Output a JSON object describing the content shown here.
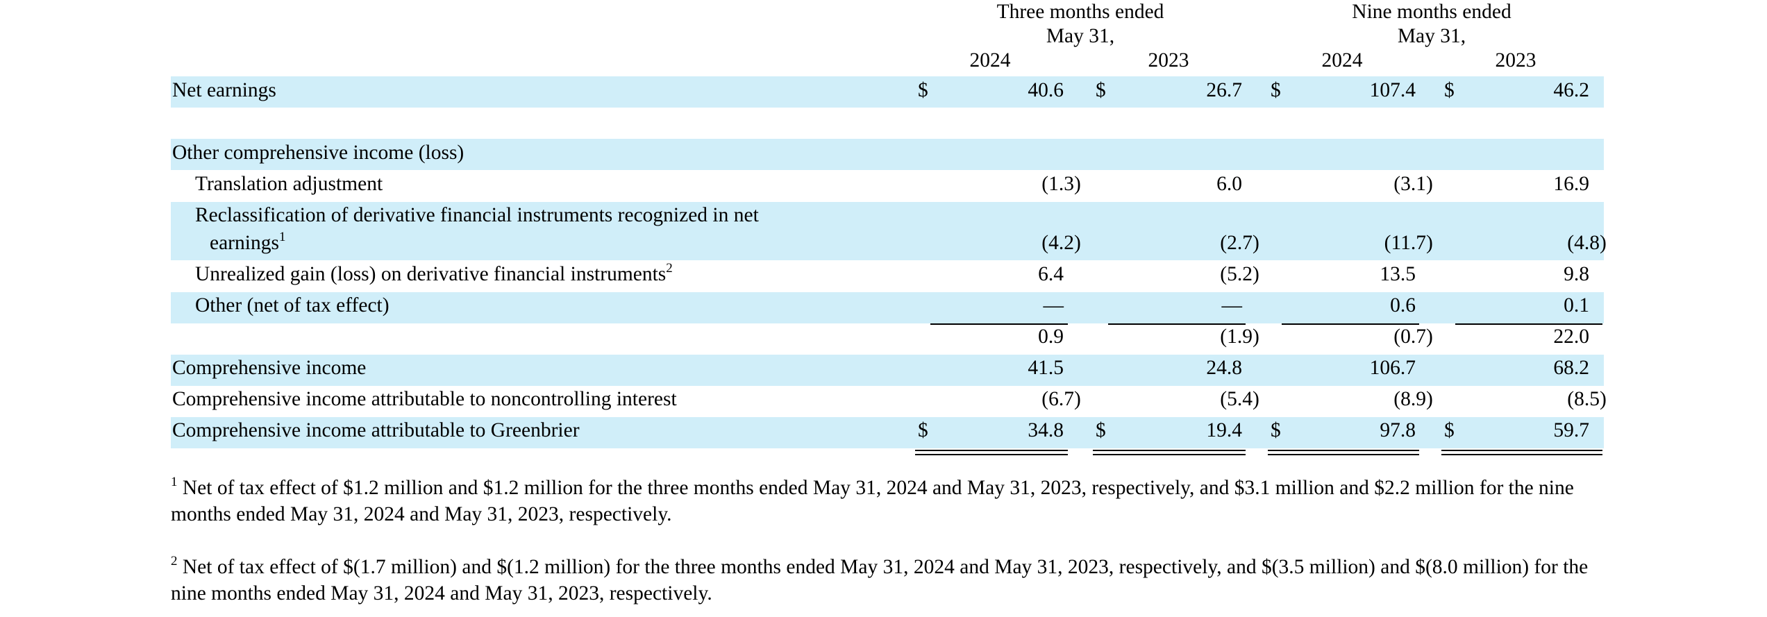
{
  "colors": {
    "band": "#d0eef9",
    "text": "#000000",
    "background": "#ffffff"
  },
  "header": {
    "three_months": [
      "Three months ended",
      "May 31,"
    ],
    "nine_months": [
      "Nine months ended",
      "May 31,"
    ],
    "years": [
      "2024",
      "2023",
      "2024",
      "2023"
    ]
  },
  "currency_symbol": "$",
  "rows": [
    {
      "label": "Net earnings",
      "values": [
        "40.6",
        "26.7",
        "107.4",
        "46.2"
      ],
      "dollar": true
    },
    {
      "label": "Other comprehensive income (loss)"
    },
    {
      "label": "Translation adjustment",
      "values": [
        "(1.3",
        "6.0",
        "(3.1",
        "16.9"
      ]
    },
    {
      "label_line1": "Reclassification of derivative financial instruments recognized in net",
      "label_line2": "earnings",
      "footnote": "1",
      "values": [
        "(4.2",
        "(2.7",
        "(11.7",
        "(4.8"
      ]
    },
    {
      "label": "Unrealized gain (loss) on derivative financial instruments",
      "footnote": "2",
      "values": [
        "6.4",
        "(5.2",
        "13.5",
        "9.8"
      ]
    },
    {
      "label": "Other (net of tax effect)",
      "values": [
        "—",
        "—",
        "0.6",
        "0.1"
      ]
    },
    {
      "label": "",
      "values": [
        "0.9",
        "(1.9",
        "(0.7",
        "22.0"
      ]
    },
    {
      "label": "Comprehensive income",
      "values": [
        "41.5",
        "24.8",
        "106.7",
        "68.2"
      ]
    },
    {
      "label": "Comprehensive income attributable to noncontrolling interest",
      "values": [
        "(6.7",
        "(5.4",
        "(8.9",
        "(8.5"
      ]
    },
    {
      "label": "Comprehensive income attributable to Greenbrier",
      "values": [
        "34.8",
        "19.4",
        "97.8",
        "59.7"
      ],
      "dollar": true
    }
  ],
  "footnotes": [
    {
      "marker": "1",
      "text": "Net of tax effect of $1.2 million and $1.2 million for the three months ended May 31, 2024 and May 31, 2023, respectively, and $3.1 million and $2.2 million for the nine months ended May 31, 2024 and May 31, 2023, respectively."
    },
    {
      "marker": "2",
      "text": "Net of tax effect of $(1.7 million) and $(1.2 million) for the three months ended May 31, 2024 and May 31, 2023, respectively, and $(3.5 million) and $(8.0 million) for the nine months ended May 31, 2024 and May 31, 2023, respectively."
    }
  ]
}
